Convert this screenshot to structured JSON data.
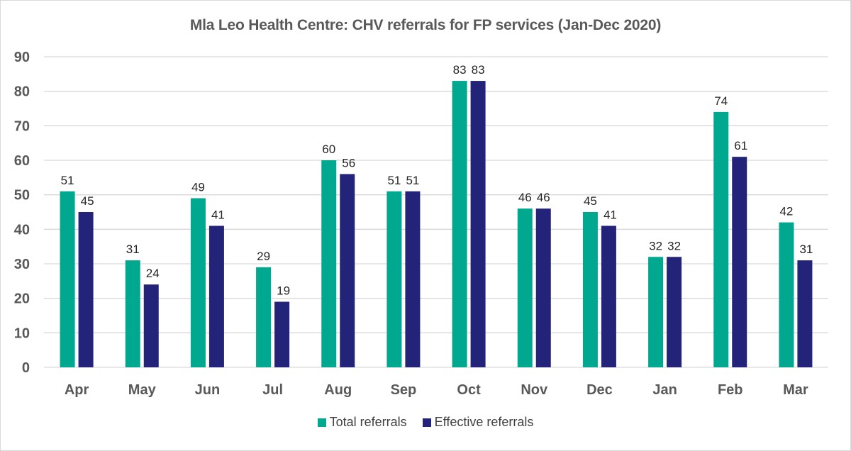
{
  "chart_data": {
    "type": "bar",
    "title": "Mla Leo Health Centre: CHV referrals for FP services (Jan-Dec 2020)",
    "xlabel": "",
    "ylabel": "",
    "ylim": [
      0,
      90
    ],
    "yticks": [
      0,
      10,
      20,
      30,
      40,
      50,
      60,
      70,
      80,
      90
    ],
    "grid": true,
    "legend_position": "bottom",
    "categories": [
      "Apr",
      "May",
      "Jun",
      "Jul",
      "Aug",
      "Sep",
      "Oct",
      "Nov",
      "Dec",
      "Jan",
      "Feb",
      "Mar"
    ],
    "series": [
      {
        "name": "Total referrals",
        "color": "#00a88f",
        "values": [
          51,
          31,
          49,
          29,
          60,
          51,
          83,
          46,
          45,
          32,
          74,
          42
        ]
      },
      {
        "name": "Effective referrals",
        "color": "#24237a",
        "values": [
          45,
          24,
          41,
          19,
          56,
          51,
          83,
          46,
          41,
          32,
          61,
          31
        ]
      }
    ]
  }
}
